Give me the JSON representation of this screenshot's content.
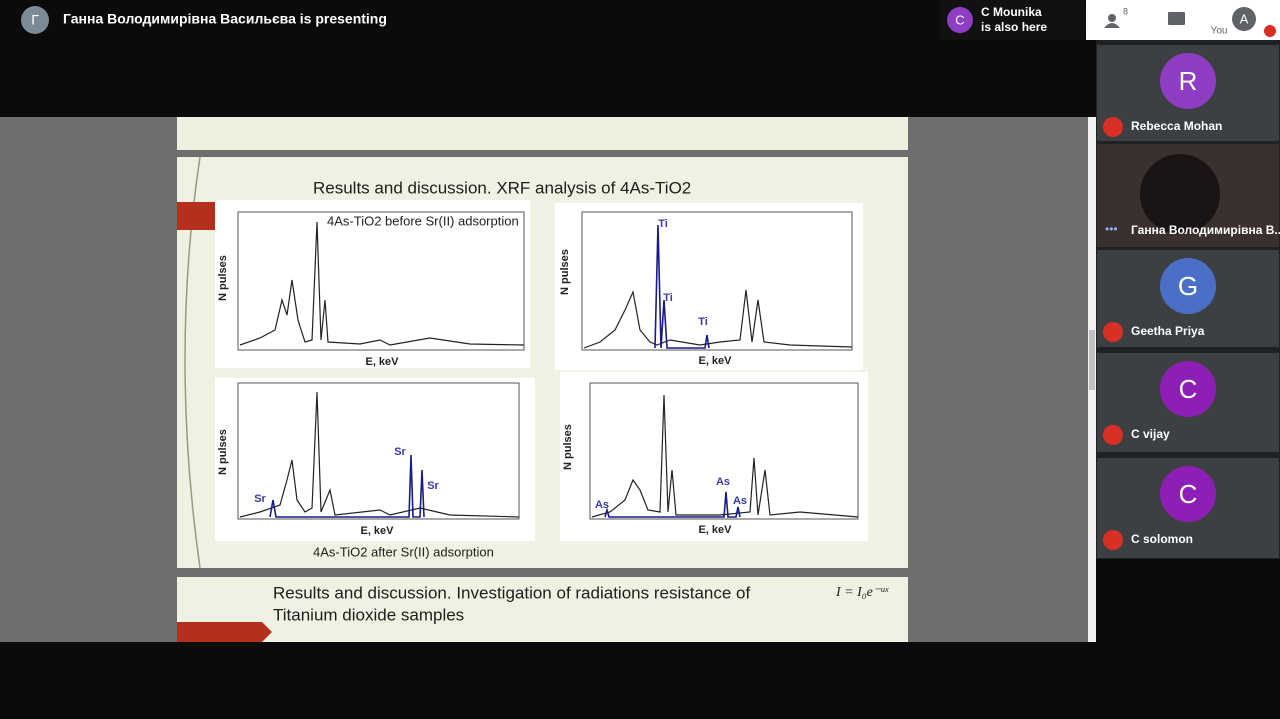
{
  "top_bar": {
    "presenter_initial": "Г",
    "presenting": "Ганна Володимирівна Васильєва is presenting",
    "also_here_initial": "C",
    "also_here_name": "C Mounika",
    "also_here_text": "is also here"
  },
  "toolbar": {
    "participant_count": 8,
    "you_label": "You",
    "you_initial": "A"
  },
  "slide": {
    "title": "Results and discussion. XRF analysis of 4As-TiO2",
    "caption_before": "4As-TiO2 before Sr(II) adsorption",
    "caption_after": "4As-TiO2 after Sr(II) adsorption",
    "panels": [
      {
        "y_label": "N pulses",
        "x_label": "E, keV",
        "peak_labels": []
      },
      {
        "y_label": "N pulses",
        "x_label": "E, keV",
        "peak_labels": [
          "Ti",
          "Ti",
          "Ti"
        ]
      },
      {
        "y_label": "N pulses",
        "x_label": "E, keV",
        "peak_labels": [
          "Sr",
          "Sr",
          "Sr"
        ]
      },
      {
        "y_label": "N pulses",
        "x_label": "E, keV",
        "peak_labels": [
          "As",
          "As",
          "As"
        ]
      }
    ],
    "next_title": [
      "Results and discussion. Investigation of radiations resistance of",
      "Titanium dioxide samples"
    ],
    "formula": "I = I₀e⁻ᵘˣ"
  },
  "participants": [
    {
      "initial": "R",
      "name": "Rebecca Mohan"
    },
    {
      "name": "Ганна Володимирівна В..."
    },
    {
      "initial": "G",
      "name": "Geetha Priya"
    },
    {
      "initial": "C",
      "name": "C vijay"
    },
    {
      "initial": "C",
      "name": "C solomon"
    }
  ]
}
